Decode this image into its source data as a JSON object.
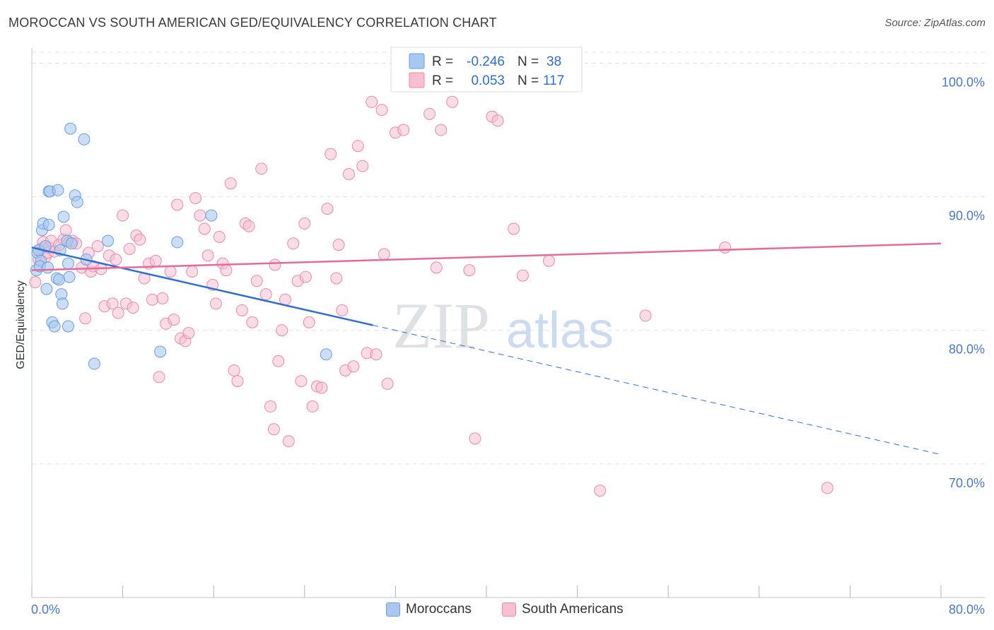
{
  "title": "MOROCCAN VS SOUTH AMERICAN GED/EQUIVALENCY CORRELATION CHART",
  "source": "Source: ZipAtlas.com",
  "watermark": {
    "zip": "ZIP",
    "atlas": "atlas"
  },
  "colors": {
    "blue_fill": "#a9c8ef",
    "blue_stroke": "#6b9ee0",
    "blue_line": "#2f6fd0",
    "pink_fill": "#f6bfd2",
    "pink_stroke": "#e88aab",
    "pink_line": "#e46b98",
    "value_text": "#2f6fd0",
    "grid": "#dde3ea"
  },
  "chart_data": {
    "type": "scatter",
    "title": "MOROCCAN VS SOUTH AMERICAN GED/EQUIVALENCY CORRELATION CHART",
    "xlabel": "",
    "ylabel": "GED/Equivalency",
    "xlim": [
      0,
      80
    ],
    "ylim": [
      60,
      100.5
    ],
    "x_tick_labels": [
      "0.0%",
      "80.0%"
    ],
    "y_ticks": [
      70,
      80,
      90,
      100
    ],
    "y_tick_labels": [
      "70.0%",
      "80.0%",
      "90.0%",
      "100.0%"
    ],
    "grid": true,
    "legend_position": "top-center",
    "stats": [
      {
        "r_label": "R =",
        "r_value": "-0.246",
        "n_label": "N =",
        "n_value": "38"
      },
      {
        "r_label": "R =",
        "r_value": "0.053",
        "n_label": "N =",
        "n_value": "117"
      }
    ],
    "series": [
      {
        "name": "Moroccans",
        "trend": {
          "x0": 0,
          "y0": 86.2,
          "x_solid_end": 30,
          "x1": 80,
          "y1": 70.7
        },
        "points": [
          [
            0.4,
            84.5
          ],
          [
            0.5,
            85.8
          ],
          [
            0.6,
            86.0
          ],
          [
            0.8,
            85.2
          ],
          [
            0.9,
            87.5
          ],
          [
            1.0,
            88.0
          ],
          [
            0.7,
            84.8
          ],
          [
            1.2,
            86.3
          ],
          [
            1.3,
            83.1
          ],
          [
            1.5,
            87.9
          ],
          [
            1.5,
            90.4
          ],
          [
            1.6,
            90.4
          ],
          [
            1.8,
            80.6
          ],
          [
            2.0,
            80.3
          ],
          [
            2.2,
            83.9
          ],
          [
            2.4,
            83.8
          ],
          [
            2.3,
            90.5
          ],
          [
            2.6,
            82.7
          ],
          [
            2.7,
            82.0
          ],
          [
            2.8,
            88.5
          ],
          [
            3.1,
            86.7
          ],
          [
            3.2,
            85.0
          ],
          [
            3.2,
            80.3
          ],
          [
            3.3,
            84.0
          ],
          [
            3.4,
            95.1
          ],
          [
            3.5,
            86.5
          ],
          [
            3.8,
            90.1
          ],
          [
            4.0,
            89.6
          ],
          [
            4.6,
            94.3
          ],
          [
            4.8,
            85.3
          ],
          [
            5.5,
            77.5
          ],
          [
            6.7,
            86.7
          ],
          [
            11.3,
            78.4
          ],
          [
            12.8,
            86.6
          ],
          [
            15.8,
            88.6
          ],
          [
            25.9,
            78.2
          ],
          [
            1.4,
            84.7
          ],
          [
            2.5,
            86.0
          ]
        ]
      },
      {
        "name": "South Americans",
        "trend": {
          "x0": 0,
          "y0": 84.5,
          "x1": 80,
          "y1": 86.5
        },
        "points": [
          [
            0.3,
            83.6
          ],
          [
            0.6,
            85.3
          ],
          [
            0.8,
            86.1
          ],
          [
            1.0,
            86.6
          ],
          [
            1.2,
            85.5
          ],
          [
            1.4,
            85.8
          ],
          [
            1.5,
            86.2
          ],
          [
            1.7,
            86.7
          ],
          [
            2.0,
            85.9
          ],
          [
            2.4,
            86.4
          ],
          [
            2.8,
            86.8
          ],
          [
            3.0,
            87.5
          ],
          [
            3.3,
            86.6
          ],
          [
            3.6,
            86.7
          ],
          [
            3.9,
            86.5
          ],
          [
            4.4,
            84.7
          ],
          [
            4.7,
            80.9
          ],
          [
            5.0,
            85.8
          ],
          [
            5.2,
            84.4
          ],
          [
            5.4,
            84.8
          ],
          [
            5.8,
            86.3
          ],
          [
            6.1,
            84.6
          ],
          [
            6.4,
            81.8
          ],
          [
            6.8,
            85.6
          ],
          [
            7.1,
            82.0
          ],
          [
            7.4,
            85.3
          ],
          [
            7.6,
            81.3
          ],
          [
            8.0,
            88.6
          ],
          [
            8.3,
            82.0
          ],
          [
            8.6,
            86.1
          ],
          [
            8.9,
            81.7
          ],
          [
            9.2,
            87.1
          ],
          [
            9.5,
            86.8
          ],
          [
            9.9,
            83.9
          ],
          [
            10.3,
            85.0
          ],
          [
            10.6,
            82.3
          ],
          [
            10.9,
            85.2
          ],
          [
            11.2,
            76.5
          ],
          [
            11.5,
            82.4
          ],
          [
            11.8,
            80.5
          ],
          [
            12.2,
            84.4
          ],
          [
            12.5,
            80.8
          ],
          [
            12.8,
            89.4
          ],
          [
            13.1,
            79.4
          ],
          [
            13.5,
            79.2
          ],
          [
            13.8,
            79.8
          ],
          [
            14.1,
            84.4
          ],
          [
            14.4,
            89.9
          ],
          [
            14.8,
            88.6
          ],
          [
            15.2,
            87.6
          ],
          [
            15.5,
            85.6
          ],
          [
            15.9,
            83.4
          ],
          [
            16.2,
            82.0
          ],
          [
            16.5,
            87.0
          ],
          [
            16.8,
            85.0
          ],
          [
            17.1,
            84.5
          ],
          [
            17.5,
            91.0
          ],
          [
            17.8,
            77.0
          ],
          [
            18.1,
            76.2
          ],
          [
            18.5,
            81.5
          ],
          [
            18.8,
            88.0
          ],
          [
            19.1,
            87.8
          ],
          [
            19.4,
            80.6
          ],
          [
            19.8,
            83.7
          ],
          [
            20.2,
            92.1
          ],
          [
            20.6,
            82.7
          ],
          [
            21.0,
            74.3
          ],
          [
            21.3,
            72.6
          ],
          [
            21.7,
            77.7
          ],
          [
            22.0,
            80.0
          ],
          [
            22.3,
            82.3
          ],
          [
            22.6,
            71.7
          ],
          [
            23.0,
            86.5
          ],
          [
            23.4,
            83.7
          ],
          [
            23.7,
            76.2
          ],
          [
            24.0,
            88.0
          ],
          [
            24.4,
            80.6
          ],
          [
            24.7,
            74.3
          ],
          [
            25.1,
            75.8
          ],
          [
            25.5,
            75.7
          ],
          [
            26.0,
            89.1
          ],
          [
            26.3,
            93.2
          ],
          [
            26.8,
            83.9
          ],
          [
            27.3,
            81.5
          ],
          [
            27.6,
            77.0
          ],
          [
            27.9,
            91.7
          ],
          [
            28.3,
            77.3
          ],
          [
            28.7,
            93.8
          ],
          [
            29.1,
            92.3
          ],
          [
            29.5,
            78.3
          ],
          [
            29.9,
            97.1
          ],
          [
            30.3,
            78.2
          ],
          [
            30.8,
            96.5
          ],
          [
            31.3,
            76.0
          ],
          [
            32.0,
            94.8
          ],
          [
            32.7,
            95.0
          ],
          [
            33.5,
            99.9
          ],
          [
            35.0,
            96.2
          ],
          [
            36.0,
            95.0
          ],
          [
            37.0,
            97.1
          ],
          [
            38.5,
            84.5
          ],
          [
            39.0,
            71.9
          ],
          [
            40.0,
            99.9
          ],
          [
            40.5,
            96.0
          ],
          [
            41.0,
            95.7
          ],
          [
            42.4,
            87.6
          ],
          [
            43.2,
            84.1
          ],
          [
            45.5,
            85.2
          ],
          [
            50.0,
            68.0
          ],
          [
            54.0,
            81.1
          ],
          [
            61.0,
            86.2
          ],
          [
            70.0,
            68.2
          ],
          [
            24.1,
            84.0
          ],
          [
            27.0,
            86.4
          ],
          [
            31.0,
            85.7
          ],
          [
            35.6,
            84.7
          ],
          [
            21.4,
            84.9
          ]
        ]
      }
    ]
  },
  "bottom_legend": {
    "series1": "Moroccans",
    "series2": "South Americans"
  }
}
